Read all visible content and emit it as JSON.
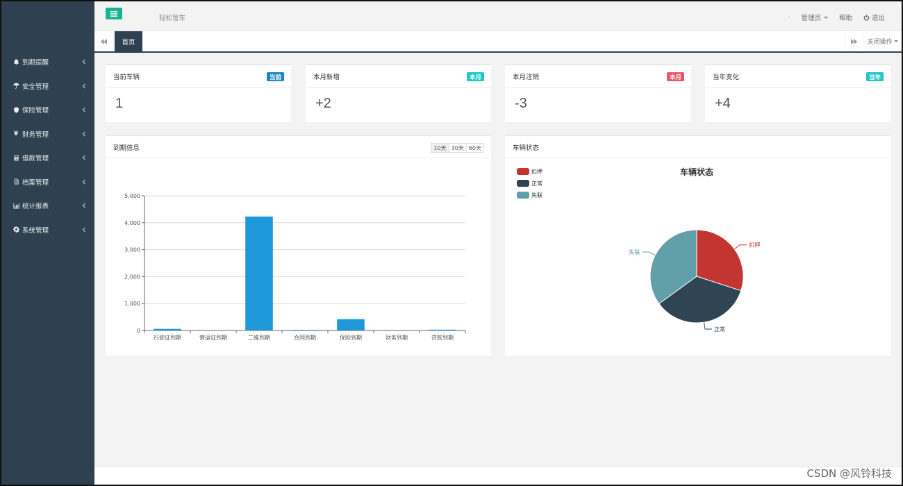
{
  "header": {
    "app_title": "轻松管车",
    "dot": "·",
    "admin_label": "管理员",
    "help_label": "帮助",
    "logout_label": "退出"
  },
  "sidebar": {
    "items": [
      {
        "label": "到期提醒",
        "icon": "bell-icon"
      },
      {
        "label": "安全管理",
        "icon": "umbrella-icon"
      },
      {
        "label": "保险管理",
        "icon": "shield-icon"
      },
      {
        "label": "财务管理",
        "icon": "yen-icon"
      },
      {
        "label": "借款管理",
        "icon": "calculator-icon"
      },
      {
        "label": "档案管理",
        "icon": "file-icon"
      },
      {
        "label": "统计报表",
        "icon": "bar-chart-icon"
      },
      {
        "label": "系统管理",
        "icon": "gear-icon"
      }
    ]
  },
  "tabs": {
    "home_label": "首页",
    "close_ops_label": "关闭操作"
  },
  "stats": [
    {
      "title": "当前车辆",
      "badge": "当前",
      "badge_color": "#1c84c6",
      "value": "1"
    },
    {
      "title": "本月新增",
      "badge": "本月",
      "badge_color": "#23c6c8",
      "value": "+2"
    },
    {
      "title": "本月注销",
      "badge": "本月",
      "badge_color": "#ed5565",
      "value": "-3"
    },
    {
      "title": "当年变化",
      "badge": "当年",
      "badge_color": "#23c6c8",
      "value": "+4"
    }
  ],
  "expiry_panel": {
    "title": "到期信息",
    "ranges": [
      "10天",
      "30天",
      "60天"
    ]
  },
  "status_panel": {
    "title": "车辆状态"
  },
  "chart_data": [
    {
      "type": "bar",
      "categories": [
        "行驶证到期",
        "营运证到期",
        "二维到期",
        "合同到期",
        "保险到期",
        "财务到期",
        "贷款到期"
      ],
      "values": [
        60,
        0,
        4230,
        20,
        420,
        0,
        30
      ],
      "ylim": [
        0,
        5000
      ],
      "yticks": [
        0,
        1000,
        2000,
        3000,
        4000,
        5000
      ],
      "ytick_labels": [
        "0",
        "1,000",
        "2,000",
        "3,000",
        "4,000",
        "5,000"
      ],
      "grid": true,
      "color": "#1e98d8"
    },
    {
      "type": "pie",
      "title": "车辆状态",
      "labels": [
        "扣押",
        "正常",
        "失联"
      ],
      "values": [
        30,
        35,
        35
      ],
      "colors": [
        "#c23531",
        "#2f4554",
        "#61a0a8"
      ],
      "legend": "top-left"
    }
  ],
  "watermark": "CSDN @风铃科技"
}
